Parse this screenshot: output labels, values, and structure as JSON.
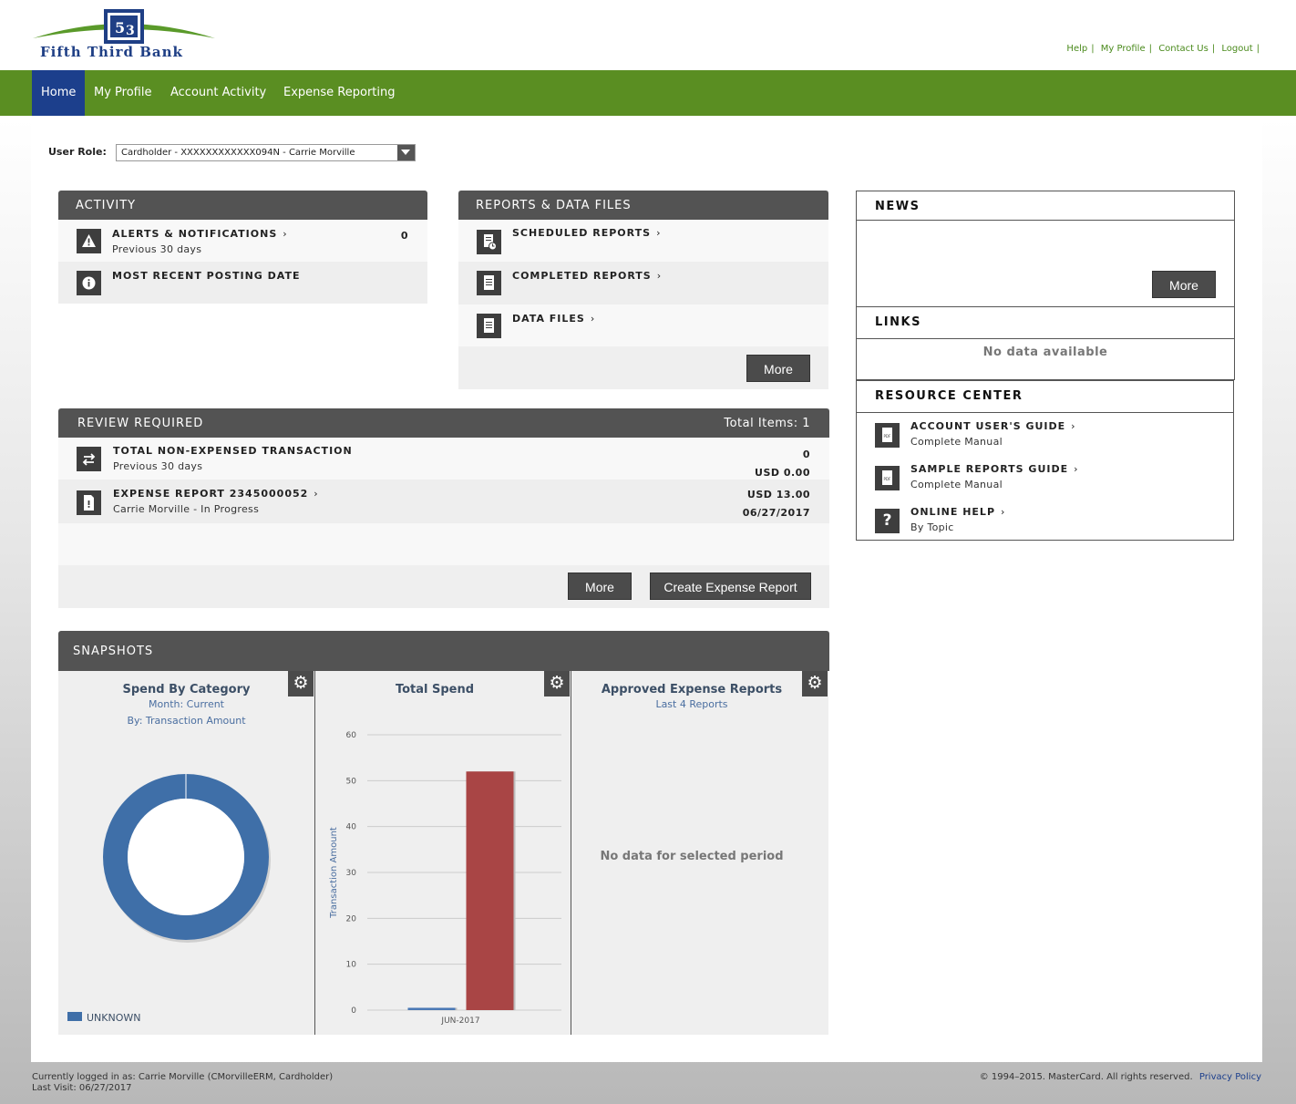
{
  "brand": {
    "name": "Fifth Third Bank"
  },
  "top_links": [
    "Help",
    "My Profile",
    "Contact Us",
    "Logout"
  ],
  "nav": {
    "items": [
      "Home",
      "My Profile",
      "Account Activity",
      "Expense Reporting"
    ],
    "active": "Home"
  },
  "user_role": {
    "label": "User Role:",
    "value": "Cardholder - XXXXXXXXXXXX094N - Carrie Morville"
  },
  "activity": {
    "title": "ACTIVITY",
    "rows": [
      {
        "title": "ALERTS & NOTIFICATIONS",
        "sub": "Previous 30 days",
        "value": "0",
        "icon": "warning-icon"
      },
      {
        "title": "MOST RECENT POSTING DATE",
        "icon": "info-icon"
      }
    ]
  },
  "reports": {
    "title": "REPORTS & DATA FILES",
    "rows": [
      {
        "title": "SCHEDULED REPORTS",
        "icon": "scheduled-report-icon"
      },
      {
        "title": "COMPLETED REPORTS",
        "icon": "document-icon"
      },
      {
        "title": "DATA FILES",
        "icon": "document-icon"
      }
    ],
    "more_label": "More"
  },
  "news": {
    "title": "NEWS",
    "more_label": "More"
  },
  "links": {
    "title": "LINKS",
    "empty": "No data available"
  },
  "resource_center": {
    "title": "RESOURCE CENTER",
    "items": [
      {
        "title": "ACCOUNT USER'S GUIDE",
        "sub": "Complete Manual",
        "icon": "pdf-icon"
      },
      {
        "title": "SAMPLE REPORTS GUIDE",
        "sub": "Complete Manual",
        "icon": "pdf-icon"
      },
      {
        "title": "ONLINE HELP",
        "sub": "By Topic",
        "icon": "question-icon"
      }
    ]
  },
  "review": {
    "title": "REVIEW REQUIRED",
    "total": "Total Items: 1",
    "rows": [
      {
        "title": "TOTAL NON-EXPENSED TRANSACTION",
        "sub": "Previous 30 days",
        "value1": "0",
        "value2": "USD 0.00",
        "icon": "transfer-icon"
      },
      {
        "title": "EXPENSE REPORT 2345000052",
        "sub": "Carrie Morville - In Progress",
        "value1": "USD 13.00",
        "value2": "06/27/2017",
        "icon": "expense-report-icon"
      }
    ],
    "more_label": "More",
    "create_label": "Create Expense Report"
  },
  "snapshots": {
    "title": "SNAPSHOTS",
    "spend_by_category": {
      "title": "Spend By Category",
      "sub1": "Month: Current",
      "sub2": "By: Transaction Amount",
      "legend": "UNKNOWN"
    },
    "total_spend": {
      "title": "Total Spend",
      "ylabel": "Transaction Amount"
    },
    "approved": {
      "title": "Approved Expense Reports",
      "sub": "Last 4 Reports",
      "empty": "No data for selected period"
    }
  },
  "chart_data": [
    {
      "type": "pie",
      "title": "Spend By Category",
      "labels": [
        "UNKNOWN"
      ],
      "values": [
        100
      ],
      "colors": [
        "#3f6fa8"
      ]
    },
    {
      "type": "bar",
      "title": "Total Spend",
      "categories": [
        "JUN-2017"
      ],
      "series": [
        {
          "values": [
            0.5
          ],
          "color": "#4a78b5"
        },
        {
          "values": [
            52
          ],
          "color": "#a94545"
        }
      ],
      "ylabel": "Transaction Amount",
      "ylim": [
        0,
        60
      ],
      "yticks": [
        0,
        10,
        20,
        30,
        40,
        50,
        60
      ],
      "grid": true
    }
  ],
  "footer": {
    "logged_in": "Currently logged in as: Carrie Morville (CMorvilleERM, Cardholder)",
    "last_visit": "Last Visit: 06/27/2017",
    "copyright": "© 1994–2015. MasterCard. All rights reserved.",
    "privacy": "Privacy Policy"
  }
}
